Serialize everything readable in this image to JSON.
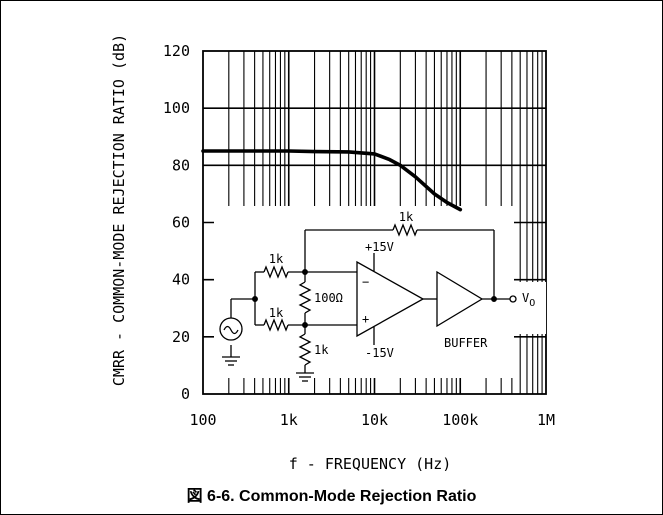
{
  "chart_data": {
    "type": "line",
    "xscale": "log",
    "xlim": [
      100,
      1000000
    ],
    "ylim": [
      0,
      120
    ],
    "xticks": [
      100,
      1000,
      10000,
      100000,
      1000000
    ],
    "xtick_labels": [
      "100",
      "1k",
      "10k",
      "100k",
      "1M"
    ],
    "yticks": [
      0,
      20,
      40,
      60,
      80,
      100,
      120
    ],
    "ytick_labels": [
      "0",
      "20",
      "40",
      "60",
      "80",
      "100",
      "120"
    ],
    "xlabel": "f - FREQUENCY (Hz)",
    "ylabel": "CMRR - COMMON-MODE REJECTION RATIO (dB)",
    "grid": true,
    "series": [
      {
        "x": [
          100,
          200,
          500,
          1000,
          2000,
          5000,
          10000,
          15000,
          20000,
          30000,
          50000,
          70000,
          100000
        ],
        "values": [
          85,
          85,
          85,
          85,
          84.8,
          84.7,
          84,
          82,
          80,
          76,
          70,
          67,
          64.5
        ]
      }
    ],
    "line_color": "#000000"
  },
  "caption": "図 6-6. Common-Mode Rejection Ratio",
  "circuit": {
    "r_in_top": "1k",
    "r_in_bottom": "1k",
    "r_mid": "100Ω",
    "r_ground": "1k",
    "r_feedback": "1k",
    "supply_pos": "+15V",
    "supply_neg": "-15V",
    "inv_input": "−",
    "noninv_input": "+",
    "buffer_label": "BUFFER",
    "output_label": "V",
    "output_sub": "O"
  }
}
